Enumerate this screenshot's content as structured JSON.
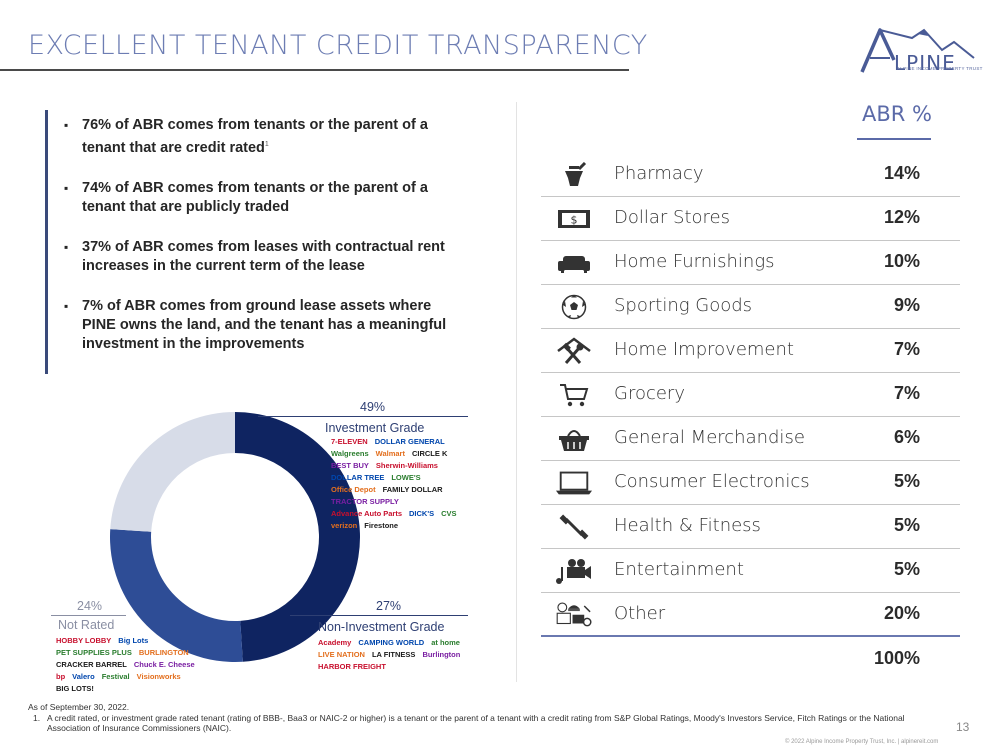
{
  "header": {
    "title": "EXCELLENT TENANT CREDIT TRANSPARENCY"
  },
  "brand": {
    "logo_text": "LPINE",
    "logo_initial": "A",
    "logo_tagline": "ALPINE INCOME PROPERTY TRUST",
    "color": "#4a5b96"
  },
  "bullets": [
    {
      "text": "76% of ABR comes from tenants or the parent of a tenant that are credit rated",
      "footnote": "1"
    },
    {
      "text": "74% of ABR comes from tenants or the parent of a tenant that are publicly traded"
    },
    {
      "text": "37% of ABR comes from leases with contractual rent increases in the current term of the lease"
    },
    {
      "text": "7% of ABR comes from ground lease assets where PINE owns the land, and the tenant has a meaningful investment in the improvements"
    }
  ],
  "abr_table": {
    "header": "ABR %",
    "rows": [
      {
        "label": "Pharmacy",
        "value": "14%",
        "icon": "mortar-pestle-icon"
      },
      {
        "label": "Dollar Stores",
        "value": "12%",
        "icon": "dollar-bill-icon"
      },
      {
        "label": "Home Furnishings",
        "value": "10%",
        "icon": "sofa-icon"
      },
      {
        "label": "Sporting Goods",
        "value": "9%",
        "icon": "soccer-ball-icon"
      },
      {
        "label": "Home Improvement",
        "value": "7%",
        "icon": "house-tools-icon"
      },
      {
        "label": "Grocery",
        "value": "7%",
        "icon": "shopping-cart-icon"
      },
      {
        "label": "General Merchandise",
        "value": "6%",
        "icon": "basket-icon"
      },
      {
        "label": "Consumer Electronics",
        "value": "5%",
        "icon": "laptop-icon"
      },
      {
        "label": "Health & Fitness",
        "value": "5%",
        "icon": "dumbbell-icon"
      },
      {
        "label": "Entertainment",
        "value": "5%",
        "icon": "music-camera-icon"
      },
      {
        "label": "Other",
        "value": "20%",
        "icon": "misc-items-icon"
      }
    ],
    "total": "100%"
  },
  "chart_data": {
    "type": "pie",
    "categories": [
      "Investment Grade",
      "Non-Investment Grade",
      "Not Rated"
    ],
    "values": [
      49,
      27,
      24
    ],
    "value_labels": [
      "49%",
      "27%",
      "24%"
    ],
    "colors": [
      "#0f2461",
      "#2e4d96",
      "#d7dce8"
    ]
  },
  "tenant_logos": {
    "investment_grade": [
      "7-ELEVEN",
      "DOLLAR GENERAL",
      "Walgreens",
      "Walmart",
      "CIRCLE K",
      "BEST BUY",
      "Sherwin-Williams",
      "DOLLAR TREE",
      "LOWE'S",
      "Office Depot",
      "FAMILY DOLLAR",
      "TRACTOR SUPPLY",
      "Advance Auto Parts",
      "DICK'S",
      "CVS",
      "verizon",
      "Firestone"
    ],
    "non_investment_grade": [
      "Academy",
      "CAMPING WORLD",
      "at home",
      "LIVE NATION",
      "LA FITNESS",
      "Burlington",
      "HARBOR FREIGHT"
    ],
    "not_rated": [
      "HOBBY LOBBY",
      "Big Lots",
      "PET SUPPLIES PLUS",
      "BURLINGTON",
      "CRACKER BARREL",
      "Chuck E. Cheese",
      "bp",
      "Valero",
      "Festival",
      "Visionworks",
      "BIG LOTS!"
    ]
  },
  "footnotes": {
    "as_of": "As of September 30, 2022.",
    "note_number": "1.",
    "note_text": "A credit rated, or investment grade rated tenant (rating of BBB-, Baa3 or NAIC-2 or higher) is a tenant or the parent of a tenant with a credit rating from S&P Global Ratings, Moody's Investors Service, Fitch Ratings or the National Association of Insurance Commissioners (NAIC)."
  },
  "page": {
    "number": "13",
    "copyright": "© 2022 Alpine Income Property Trust, Inc.  |  alpinereit.com"
  }
}
